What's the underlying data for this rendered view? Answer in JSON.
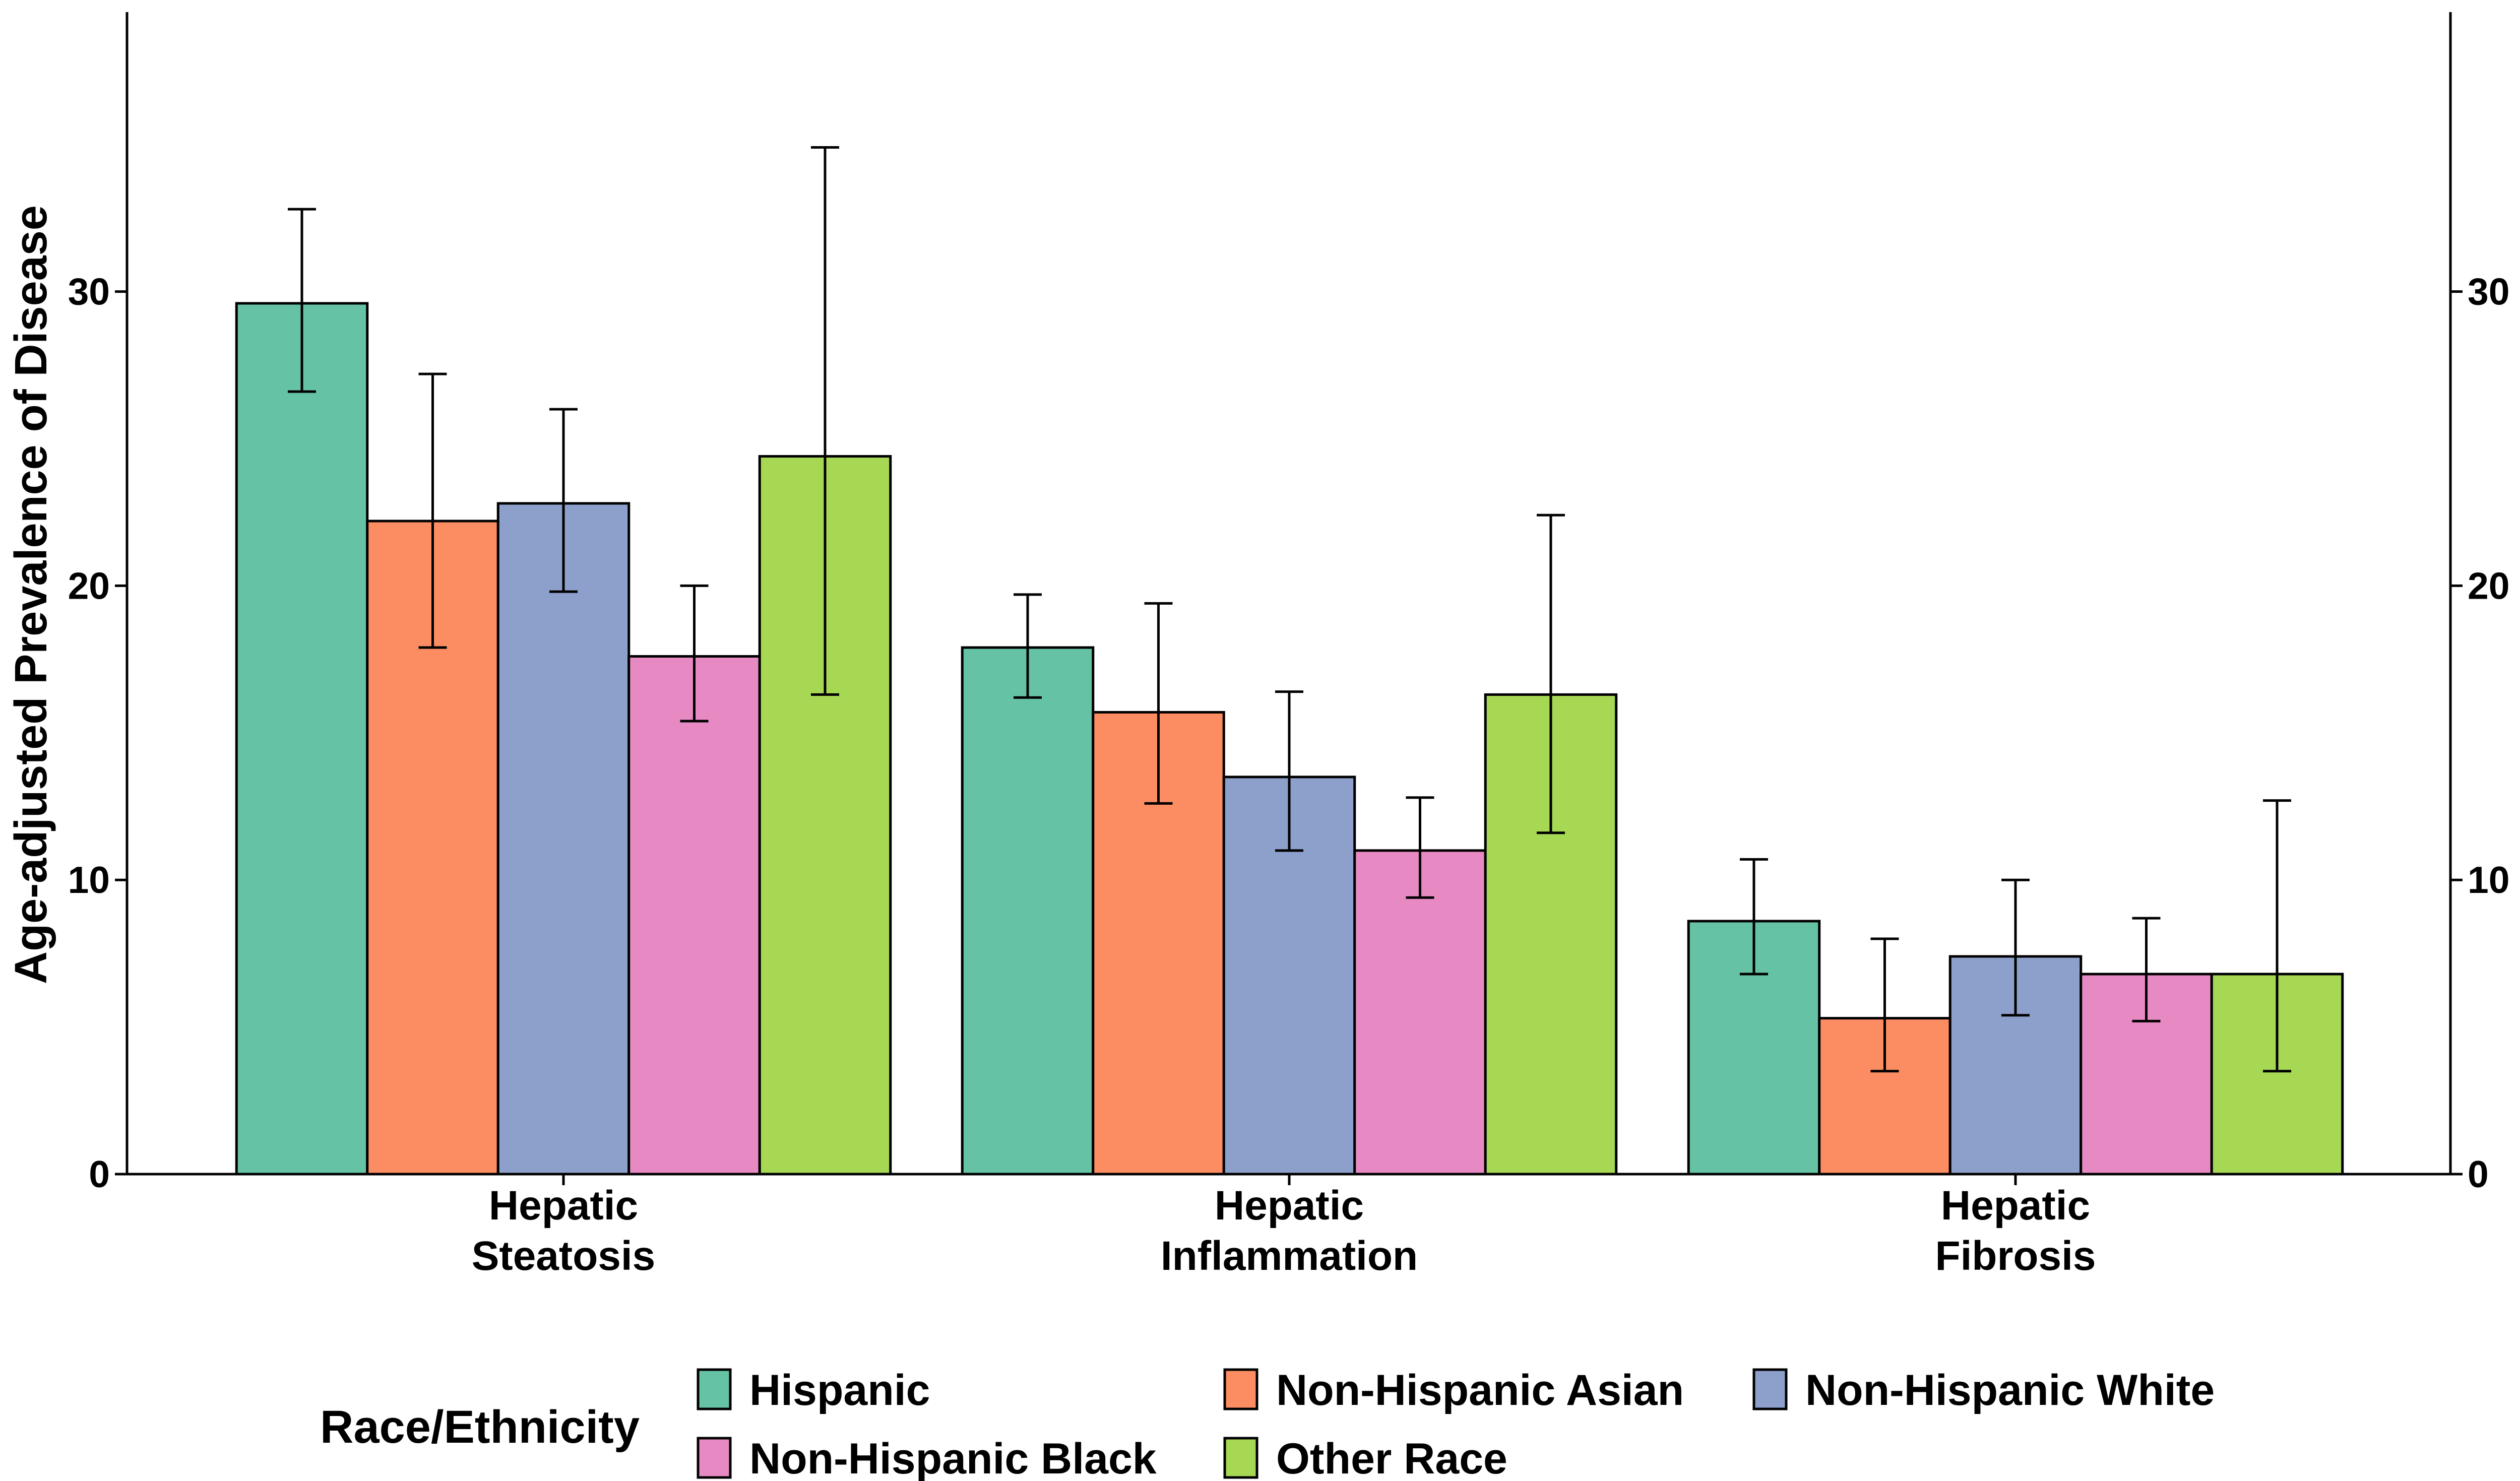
{
  "chart_data": {
    "type": "bar",
    "title": "",
    "xlabel": "",
    "ylabel": "Age-adjusted Prevalence of Disease",
    "ylim": [
      0,
      39.5
    ],
    "yticks": [
      0,
      10,
      20,
      30
    ],
    "secondary_y_axis": true,
    "grid": false,
    "categories": [
      [
        "Hepatic",
        "Steatosis"
      ],
      [
        "Hepatic",
        "Inflammation"
      ],
      [
        "Hepatic",
        "Fibrosis"
      ]
    ],
    "series": [
      {
        "name": "Hispanic",
        "color": "#66C2A5",
        "values": [
          29.6,
          17.9,
          8.6
        ],
        "lower": [
          26.6,
          16.2,
          6.8
        ],
        "upper": [
          32.8,
          19.7,
          10.7
        ]
      },
      {
        "name": "Non-Hispanic Asian",
        "color": "#FC8D62",
        "values": [
          22.2,
          15.7,
          5.3
        ],
        "lower": [
          17.9,
          12.6,
          3.5
        ],
        "upper": [
          27.2,
          19.4,
          8.0
        ]
      },
      {
        "name": "Non-Hispanic White",
        "color": "#8DA0CB",
        "values": [
          22.8,
          13.5,
          7.4
        ],
        "lower": [
          19.8,
          11.0,
          5.4
        ],
        "upper": [
          26.0,
          16.4,
          10.0
        ]
      },
      {
        "name": "Non-Hispanic Black",
        "color": "#E78AC3",
        "values": [
          17.6,
          11.0,
          6.8
        ],
        "lower": [
          15.4,
          9.4,
          5.2
        ],
        "upper": [
          20.0,
          12.8,
          8.7
        ]
      },
      {
        "name": "Other Race",
        "color": "#A6D854",
        "values": [
          24.4,
          16.3,
          6.8
        ],
        "lower": [
          16.3,
          11.6,
          3.5
        ],
        "upper": [
          34.9,
          22.4,
          12.7
        ]
      }
    ],
    "legend": {
      "title": "Race/Ethnicity",
      "position": "bottom",
      "rows": [
        [
          "Hispanic",
          "Non-Hispanic Asian",
          "Non-Hispanic White"
        ],
        [
          "Non-Hispanic Black",
          "Other Race"
        ]
      ]
    }
  }
}
